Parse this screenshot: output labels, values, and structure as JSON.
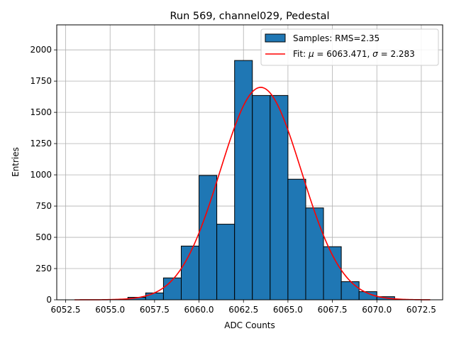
{
  "chart_data": {
    "type": "bar",
    "title": "Run 569, channel029, Pedestal",
    "xlabel": "ADC Counts",
    "ylabel": "Entries",
    "xlim": [
      6052.0,
      6073.7
    ],
    "ylim": [
      0,
      2200
    ],
    "xticks": [
      6052.5,
      6055.0,
      6057.5,
      6060.0,
      6062.5,
      6065.0,
      6067.5,
      6070.0,
      6072.5
    ],
    "xtick_labels": [
      "6052.5",
      "6055.0",
      "6057.5",
      "6060.0",
      "6062.5",
      "6065.0",
      "6067.5",
      "6070.0",
      "6072.5"
    ],
    "yticks": [
      0,
      250,
      500,
      750,
      1000,
      1250,
      1500,
      1750,
      2000
    ],
    "ytick_labels": [
      "0",
      "250",
      "500",
      "750",
      "1000",
      "1250",
      "1500",
      "1750",
      "2000"
    ],
    "grid": true,
    "legend_position": "top-right",
    "bar_color": "#1f77b4",
    "fit_color": "#ff0000",
    "bins": [
      {
        "left": 6053.0,
        "right": 6054.0,
        "value": 0
      },
      {
        "left": 6054.0,
        "right": 6055.0,
        "value": 0
      },
      {
        "left": 6055.0,
        "right": 6056.0,
        "value": 0
      },
      {
        "left": 6056.0,
        "right": 6057.0,
        "value": 20
      },
      {
        "left": 6057.0,
        "right": 6058.0,
        "value": 55
      },
      {
        "left": 6058.0,
        "right": 6059.0,
        "value": 175
      },
      {
        "left": 6059.0,
        "right": 6060.0,
        "value": 430
      },
      {
        "left": 6060.0,
        "right": 6061.0,
        "value": 995
      },
      {
        "left": 6061.0,
        "right": 6062.0,
        "value": 605
      },
      {
        "left": 6062.0,
        "right": 6063.0,
        "value": 1915
      },
      {
        "left": 6063.0,
        "right": 6064.0,
        "value": 1635
      },
      {
        "left": 6064.0,
        "right": 6065.0,
        "value": 1635
      },
      {
        "left": 6065.0,
        "right": 6066.0,
        "value": 965
      },
      {
        "left": 6066.0,
        "right": 6067.0,
        "value": 735
      },
      {
        "left": 6067.0,
        "right": 6068.0,
        "value": 425
      },
      {
        "left": 6068.0,
        "right": 6069.0,
        "value": 145
      },
      {
        "left": 6069.0,
        "right": 6070.0,
        "value": 65
      },
      {
        "left": 6070.0,
        "right": 6071.0,
        "value": 25
      }
    ],
    "fit": {
      "mu": 6063.471,
      "sigma": 2.283,
      "amplitude": 1700,
      "x_range": [
        6053.0,
        6073.0
      ]
    },
    "legend": {
      "samples_label": "Samples: RMS=2.35",
      "fit_prefix": "Fit: ",
      "mu_symbol": "μ",
      "mu_text": " = 6063.471, ",
      "sigma_symbol": "σ",
      "sigma_text": " = 2.283"
    }
  }
}
